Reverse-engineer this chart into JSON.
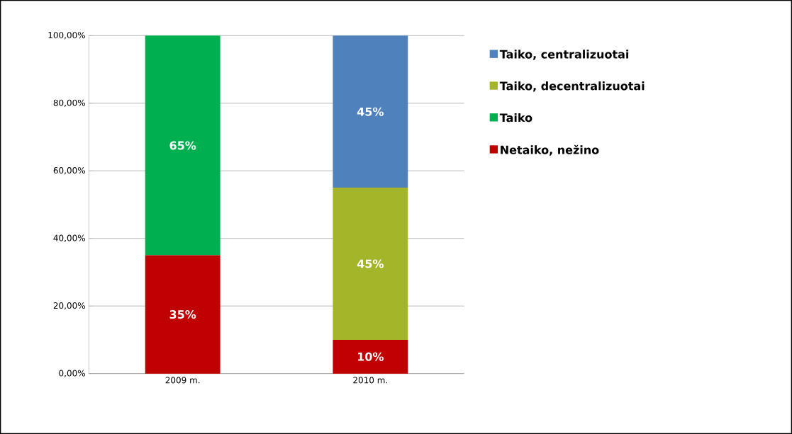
{
  "chart_data": {
    "type": "bar",
    "stacked": true,
    "categories": [
      "2009 m.",
      "2010 m."
    ],
    "series": [
      {
        "name": "Netaiko, nežino",
        "color": "#c00000",
        "values": [
          35,
          10
        ],
        "value_labels": [
          "35%",
          "10%"
        ]
      },
      {
        "name": "Taiko",
        "color": "#00b050",
        "values": [
          65,
          null
        ],
        "value_labels": [
          "65%",
          null
        ]
      },
      {
        "name": "Taiko, decentralizuotai",
        "color": "#a5b52a",
        "values": [
          null,
          45
        ],
        "value_labels": [
          null,
          "45%"
        ]
      },
      {
        "name": "Taiko, centralizuotai",
        "color": "#4f81bd",
        "values": [
          null,
          45
        ],
        "value_labels": [
          null,
          "45%"
        ]
      }
    ],
    "ylim": [
      0,
      100
    ],
    "yticks": [
      {
        "value": 0,
        "label": "0,00%"
      },
      {
        "value": 20,
        "label": "20,00%"
      },
      {
        "value": 40,
        "label": "40,00%"
      },
      {
        "value": 60,
        "label": "60,00%"
      },
      {
        "value": 80,
        "label": "80,00%"
      },
      {
        "value": 100,
        "label": "100,00%"
      }
    ],
    "grid": "y",
    "legend": "right"
  }
}
